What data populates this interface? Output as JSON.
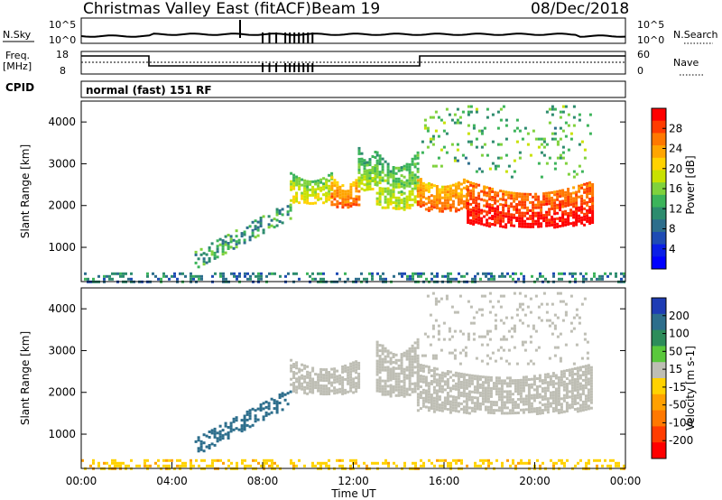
{
  "header": {
    "title": "Christmas Valley East (fitACF)",
    "beam": "Beam 19",
    "date": "08/Dec/2018"
  },
  "top_panels": {
    "nsky_label": "N.Sky",
    "nsearch_label": "N.Search",
    "freq_label_1": "Freq.",
    "freq_label_2": "[MHz]",
    "nave_label": "Nave",
    "cpid_label": "CPID",
    "cpid_text": "normal (fast) 151 RF",
    "noise_ticks_left": [
      "10^5",
      "10^0"
    ],
    "noise_ticks_right": [
      "10^5",
      "10^0"
    ],
    "freq_ticks_left": [
      "18",
      "8"
    ],
    "nave_ticks_right": [
      "60",
      "0"
    ]
  },
  "colorbars": {
    "power": {
      "label": "Power [dB]",
      "ticks": [
        "28",
        "24",
        "20",
        "16",
        "12",
        "8",
        "4"
      ],
      "colors": [
        "#ff0000",
        "#ff3c00",
        "#ff7800",
        "#ffa500",
        "#ffd200",
        "#c8e100",
        "#7fd23c",
        "#3cb45a",
        "#2d8c6e",
        "#2d6e8c",
        "#1e4bb4",
        "#0a1ee6",
        "#0000ff"
      ]
    },
    "velocity": {
      "label": "Velocity [m s-1]",
      "ticks": [
        "200",
        "100",
        "50",
        "15",
        "-15",
        "-50",
        "-100",
        "-200"
      ],
      "colors": [
        "#1e3cb4",
        "#2d6e8c",
        "#2d8c5a",
        "#5ac83c",
        "#bebeb4",
        "#ffd200",
        "#ffa000",
        "#ff7800",
        "#ff3c00",
        "#ff0000"
      ]
    }
  },
  "axes": {
    "slant_range_label": "Slant Range [km]",
    "range_ticks": [
      "4000",
      "3000",
      "2000",
      "1000"
    ],
    "time_ticks": [
      "00:00",
      "04:00",
      "08:00",
      "12:00",
      "16:00",
      "20:00",
      "00:00"
    ],
    "xlabel": "Time UT"
  },
  "chart_data": [
    {
      "type": "heatmap",
      "title": "Power [dB]",
      "xlabel": "Time UT",
      "ylabel": "Slant Range [km]",
      "xlim_hours": [
        0,
        24
      ],
      "ylim_km": [
        180,
        4500
      ],
      "colorbar_ticks": [
        4,
        8,
        12,
        16,
        20,
        24,
        28
      ],
      "echo_bands": [
        {
          "t_start_h": 5.0,
          "t_end_h": 9.2,
          "r_start_km": 700,
          "r_end_km": 1900,
          "power_db": 10,
          "kind": "striated"
        },
        {
          "t_start_h": 9.2,
          "t_end_h": 11.0,
          "r_start_km": 2000,
          "r_end_km": 2800,
          "power_db": 16,
          "kind": "arc"
        },
        {
          "t_start_h": 11.0,
          "t_end_h": 12.2,
          "r_start_km": 1900,
          "r_end_km": 2700,
          "power_db": 22,
          "kind": "arc"
        },
        {
          "t_start_h": 12.2,
          "t_end_h": 13.0,
          "r_start_km": 2300,
          "r_end_km": 3400,
          "power_db": 14,
          "kind": "arc"
        },
        {
          "t_start_h": 13.0,
          "t_end_h": 14.8,
          "r_start_km": 1800,
          "r_end_km": 3300,
          "power_db": 14,
          "kind": "arc"
        },
        {
          "t_start_h": 14.8,
          "t_end_h": 17.0,
          "r_start_km": 1800,
          "r_end_km": 2700,
          "power_db": 22,
          "kind": "arc"
        },
        {
          "t_start_h": 17.0,
          "t_end_h": 22.5,
          "r_start_km": 1400,
          "r_end_km": 2600,
          "power_db": 26,
          "kind": "arc"
        },
        {
          "t_start_h": 15.0,
          "t_end_h": 22.5,
          "r_start_km": 2700,
          "r_end_km": 4400,
          "power_db": 12,
          "kind": "sparse"
        },
        {
          "t_start_h": 0.0,
          "t_end_h": 24.0,
          "r_start_km": 180,
          "r_end_km": 400,
          "power_db": 8,
          "kind": "ground"
        }
      ]
    },
    {
      "type": "heatmap",
      "title": "Velocity [m s-1]",
      "xlabel": "Time UT",
      "ylabel": "Slant Range [km]",
      "xlim_hours": [
        0,
        24
      ],
      "ylim_km": [
        180,
        4500
      ],
      "colorbar_ticks": [
        -200,
        -100,
        -50,
        -15,
        15,
        50,
        100,
        200
      ],
      "echo_bands": [
        {
          "t_start_h": 5.0,
          "t_end_h": 9.2,
          "r_start_km": 700,
          "r_end_km": 1900,
          "velocity": 120,
          "kind": "striated"
        },
        {
          "t_start_h": 9.2,
          "t_end_h": 12.2,
          "r_start_km": 1900,
          "r_end_km": 2800,
          "velocity": 0,
          "kind": "arc"
        },
        {
          "t_start_h": 13.0,
          "t_end_h": 14.8,
          "r_start_km": 1800,
          "r_end_km": 3300,
          "velocity": 0,
          "kind": "arc"
        },
        {
          "t_start_h": 14.8,
          "t_end_h": 22.5,
          "r_start_km": 1400,
          "r_end_km": 2700,
          "velocity": 0,
          "kind": "arc"
        },
        {
          "t_start_h": 15.0,
          "t_end_h": 22.5,
          "r_start_km": 2700,
          "r_end_km": 4400,
          "velocity": 0,
          "kind": "sparse"
        },
        {
          "t_start_h": 0.0,
          "t_end_h": 24.0,
          "r_start_km": 180,
          "r_end_km": 400,
          "velocity": -40,
          "kind": "ground"
        }
      ]
    }
  ]
}
